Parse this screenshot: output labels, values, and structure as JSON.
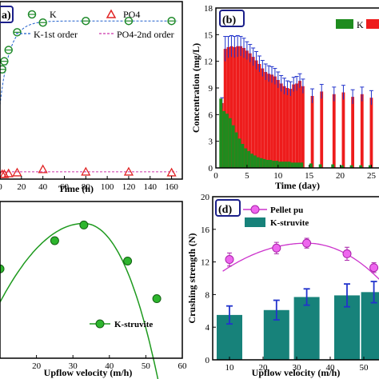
{
  "colors": {
    "k_green": "#1f8a2a",
    "po4_red": "#e02424",
    "bar_red": "#ee1c1c",
    "bar_green": "#1e8c1e",
    "err_blue": "#2233cc",
    "curve_green": "#1e9a1e",
    "pellet_magenta": "#cc33cc",
    "teal": "#17827a",
    "frame_blue": "#1b1f8a",
    "label_box": "#1b1f8a"
  },
  "chart_data": [
    {
      "panel": "a",
      "type": "scatter",
      "panel_label": "a)",
      "xlabel": "Time (h)",
      "xlim": [
        0,
        170
      ],
      "ylim": [
        0,
        1.1
      ],
      "x_ticks": [
        "0",
        "20",
        "40",
        "60",
        "80",
        "100",
        "120",
        "140",
        "160"
      ],
      "legend": {
        "k": "K",
        "po4": "PO4",
        "k_fit": "K-1st order",
        "po4_fit": "PO4-2nd order"
      },
      "series": [
        {
          "name": "K",
          "x": [
            2,
            4,
            8,
            16,
            40,
            80,
            120,
            160
          ],
          "y": [
            0.68,
            0.73,
            0.8,
            0.91,
            0.97,
            0.98,
            0.98,
            0.98
          ]
        },
        {
          "name": "PO4",
          "x": [
            2,
            4,
            8,
            16,
            40,
            80,
            120,
            160
          ],
          "y": [
            0.03,
            0.03,
            0.035,
            0.04,
            0.06,
            0.045,
            0.045,
            0.04
          ]
        }
      ]
    },
    {
      "panel": "b",
      "type": "bar",
      "panel_label": "(b)",
      "ylabel": "Concentration (mg/L)",
      "xlabel": "Time (day)",
      "ylim": [
        0,
        18
      ],
      "xlim": [
        0,
        27
      ],
      "y_ticks": [
        "0",
        "3",
        "6",
        "9",
        "12",
        "15",
        "18"
      ],
      "x_ticks": [
        "0",
        "5",
        "10",
        "15",
        "20",
        "25"
      ],
      "legend": {
        "k": "K"
      },
      "series": [
        {
          "name": "red",
          "x": [
            1,
            1.5,
            2,
            2.5,
            3,
            3.5,
            4,
            4.5,
            5,
            5.5,
            6,
            6.5,
            7,
            7.5,
            8,
            8.5,
            9,
            9.5,
            10,
            10.5,
            11,
            11.5,
            12,
            12.5,
            13,
            13.5,
            14,
            15.5,
            17,
            19,
            20.5,
            22,
            23.5,
            25
          ],
          "y": [
            7.3,
            13.4,
            13.6,
            13.7,
            13.6,
            13.7,
            13.7,
            13.5,
            13.2,
            12.9,
            12.5,
            12.1,
            11.7,
            11.2,
            10.8,
            10.6,
            10.5,
            10.3,
            9.9,
            9.5,
            9.2,
            9.0,
            8.9,
            9.4,
            9.5,
            9.8,
            9.2,
            8.1,
            8.6,
            8.3,
            8.5,
            8.0,
            8.3,
            7.9
          ],
          "err": [
            0.6,
            1.4,
            1.2,
            1.2,
            1.2,
            1.2,
            1.1,
            1.1,
            1.0,
            1.0,
            1.0,
            1.0,
            0.9,
            0.9,
            0.9,
            0.9,
            0.9,
            0.9,
            0.9,
            0.9,
            0.9,
            0.8,
            0.8,
            0.8,
            0.8,
            0.8,
            0.8,
            0.8,
            0.8,
            0.8,
            0.8,
            0.8,
            0.8,
            0.8
          ]
        },
        {
          "name": "K",
          "x": [
            1,
            1.5,
            2,
            2.5,
            3,
            3.5,
            4,
            4.5,
            5,
            5.5,
            6,
            6.5,
            7,
            7.5,
            8,
            8.5,
            9,
            9.5,
            10,
            10.5,
            11,
            11.5,
            12,
            12.5,
            13,
            13.5,
            14,
            15.5,
            17,
            19,
            20.5,
            22,
            23.5,
            25
          ],
          "y": [
            7.8,
            6.4,
            6.1,
            5.6,
            4.8,
            4.0,
            3.3,
            2.7,
            2.2,
            1.9,
            1.6,
            1.4,
            1.2,
            1.1,
            1.0,
            0.9,
            0.9,
            0.8,
            0.8,
            0.7,
            0.7,
            0.7,
            0.7,
            0.6,
            0.6,
            0.6,
            0.6,
            0.5,
            0.4,
            0.4,
            0.3,
            0.3,
            0.3,
            0.3
          ]
        }
      ]
    },
    {
      "panel": "c",
      "type": "line",
      "xlabel": "Upflow velocity (m/h)",
      "xlim": [
        10,
        60
      ],
      "x_ticks": [
        "20",
        "30",
        "40",
        "50",
        "60"
      ],
      "legend": {
        "k_struvite": "K-struvite"
      },
      "series": [
        {
          "name": "K-struvite",
          "x": [
            10,
            25,
            33,
            45,
            53
          ],
          "y": [
            0.57,
            0.75,
            0.85,
            0.62,
            0.38
          ]
        }
      ]
    },
    {
      "panel": "d",
      "type": "bar",
      "panel_label": "(d)",
      "ylabel": "Crushing strength (N)",
      "xlabel": "Upflow velocity (m/h)",
      "ylim": [
        0,
        20
      ],
      "xlim": [
        5,
        55
      ],
      "y_ticks": [
        "0",
        "4",
        "8",
        "12",
        "16",
        "20"
      ],
      "x_ticks": [
        "10",
        "20",
        "30",
        "40",
        "50"
      ],
      "legend": {
        "pellet": "Pellet pu",
        "k_struvite": "K-struvite"
      },
      "series": [
        {
          "name": "K-struvite",
          "x": [
            10,
            24,
            33,
            45,
            53
          ],
          "y": [
            5.5,
            6.1,
            7.7,
            7.9,
            8.3
          ],
          "err": [
            1.1,
            1.2,
            1.0,
            1.4,
            1.3
          ]
        },
        {
          "name": "Pellet pu",
          "x": [
            10,
            24,
            33,
            45,
            53
          ],
          "y": [
            12.3,
            13.7,
            14.3,
            13.0,
            11.3
          ],
          "err": [
            0.8,
            0.7,
            0.6,
            0.8,
            0.6
          ]
        }
      ]
    }
  ]
}
